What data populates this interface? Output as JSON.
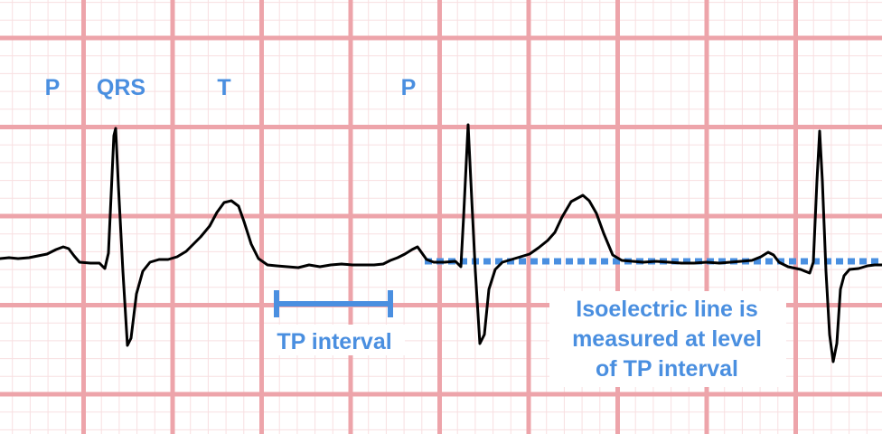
{
  "labels": {
    "p_first": "P",
    "qrs": "QRS",
    "t": "T",
    "p_second": "P"
  },
  "tp_interval_label": "TP interval",
  "isoelectric_note": [
    "Isoelectric line is",
    "measured at level",
    "of TP interval"
  ],
  "colors": {
    "grid_major": "#eda4aa",
    "grid_minor": "#f8dfe1",
    "trace": "#000000",
    "accent": "#4a8fe0"
  }
}
